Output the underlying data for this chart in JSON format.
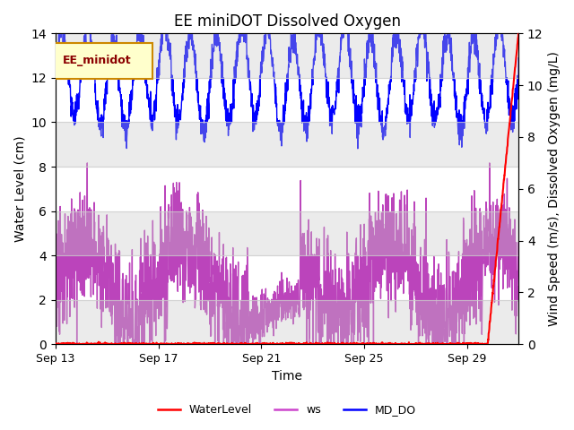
{
  "title": "EE miniDOT Dissolved Oxygen",
  "xlabel": "Time",
  "ylabel_left": "Water Level (cm)",
  "ylabel_right": "Wind Speed (m/s), Dissolved Oxygen (mg/L)",
  "ylim_left": [
    0,
    14
  ],
  "ylim_right": [
    0,
    12
  ],
  "x_ticks_labels": [
    "Sep 13",
    "Sep 17",
    "Sep 21",
    "Sep 25",
    "Sep 29"
  ],
  "legend_box_label": "EE_minidot",
  "legend_items": [
    "WaterLevel",
    "ws",
    "MD_DO"
  ],
  "legend_colors": [
    "#ff0000",
    "#cc44cc",
    "#0000ff"
  ],
  "background_color": "#ffffff",
  "band_color": "#c8c8c8",
  "band_alpha": 0.35,
  "title_fontsize": 12,
  "axis_fontsize": 10,
  "x_tick_days": [
    0,
    4,
    8,
    12,
    16
  ],
  "n_days": 18,
  "n_pts": 2000
}
